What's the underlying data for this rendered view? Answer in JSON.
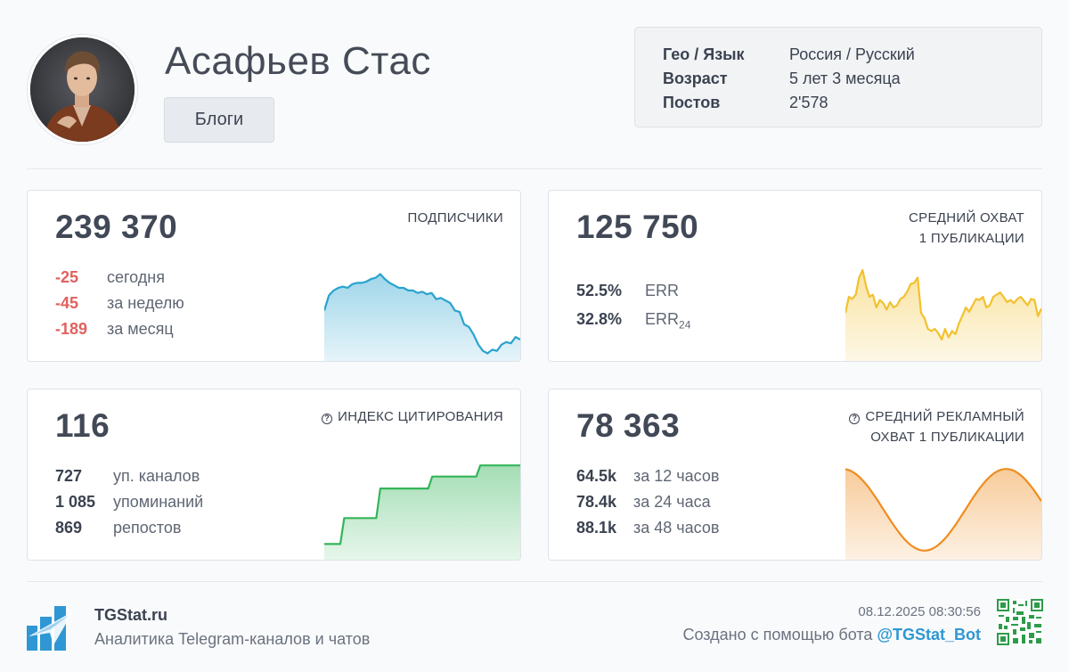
{
  "channel": {
    "name": "Асафьев Стас",
    "category": "Блоги"
  },
  "info": [
    {
      "key": "Гео / Язык",
      "value": "Россия / Русский"
    },
    {
      "key": "Возраст",
      "value": "5 лет 3 месяца"
    },
    {
      "key": "Постов",
      "value": "2'578"
    }
  ],
  "subscribers": {
    "value": "239 370",
    "title": "ПОДПИСЧИКИ",
    "rows": [
      {
        "num": "-25",
        "label": "сегодня"
      },
      {
        "num": "-45",
        "label": "за неделю"
      },
      {
        "num": "-189",
        "label": "за месяц"
      }
    ],
    "color": "#29a3cf",
    "trend": [
      40,
      52,
      56,
      58,
      59,
      58,
      61,
      62,
      62,
      63,
      65,
      66,
      69,
      65,
      62,
      60,
      58,
      58,
      56,
      56,
      54,
      55,
      53,
      54,
      49,
      50,
      48,
      46,
      40,
      39,
      29,
      27,
      21,
      13,
      8,
      6,
      9,
      8,
      13,
      15,
      14,
      19,
      17
    ]
  },
  "reach": {
    "value": "125 750",
    "title_line1": "СРЕДНИЙ ОХВАТ",
    "title_line2": "1 ПУБЛИКАЦИИ",
    "rows": [
      {
        "num": "52.5%",
        "label": "ERR",
        "sub": ""
      },
      {
        "num": "32.8%",
        "label": "ERR",
        "sub": "24"
      }
    ],
    "color": "#f2c12e",
    "trend": [
      45,
      60,
      58,
      62,
      78,
      85,
      70,
      60,
      62,
      50,
      57,
      54,
      48,
      55,
      50,
      52,
      58,
      60,
      65,
      72,
      73,
      78,
      45,
      40,
      30,
      28,
      30,
      26,
      20,
      30,
      22,
      28,
      25,
      35,
      42,
      50,
      46,
      52,
      58,
      57,
      60,
      50,
      52,
      60,
      62,
      64,
      60,
      55,
      57,
      54,
      58,
      60,
      56,
      52,
      58,
      57,
      42,
      49
    ]
  },
  "citation": {
    "value": "116",
    "title": "ИНДЕКС ЦИТИРОВАНИЯ",
    "rows": [
      {
        "num": "727",
        "label": "уп. каналов"
      },
      {
        "num": "1 085",
        "label": "упоминаний"
      },
      {
        "num": "869",
        "label": "репостов"
      }
    ],
    "color": "#34b55a",
    "trend": [
      17,
      17,
      17,
      17,
      17,
      45,
      45,
      45,
      45,
      45,
      45,
      45,
      45,
      45,
      77,
      77,
      77,
      77,
      77,
      77,
      77,
      77,
      77,
      77,
      77,
      77,
      77,
      90,
      90,
      90,
      90,
      90,
      90,
      90,
      90,
      90,
      90,
      90,
      90,
      102,
      102,
      102,
      102,
      102,
      102,
      102,
      102,
      102,
      102,
      102
    ]
  },
  "ad_reach": {
    "value": "78 363",
    "title_line1": "СРЕДНИЙ РЕКЛАМНЫЙ",
    "title_line2": "ОХВАТ 1 ПУБЛИКАЦИИ",
    "rows": [
      {
        "num": "64.5k",
        "label": "за 12 часов"
      },
      {
        "num": "78.4k",
        "label": "за 24 часа"
      },
      {
        "num": "88.1k",
        "label": "за 48 часов"
      }
    ],
    "color": "#ef8d20"
  },
  "footer": {
    "brand": "TGStat.ru",
    "tagline": "Аналитика Telegram-каналов и чатов",
    "timestamp": "08.12.2025 08:30:56",
    "created_text": "Создано с помощью бота",
    "bot": "@TGStat_Bot"
  }
}
